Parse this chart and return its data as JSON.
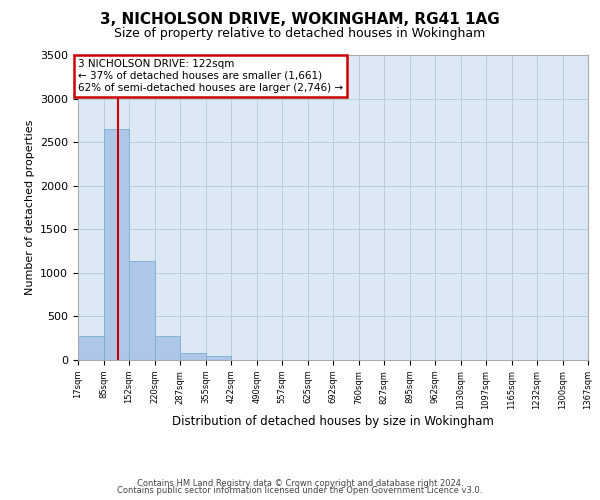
{
  "title": "3, NICHOLSON DRIVE, WOKINGHAM, RG41 1AG",
  "subtitle": "Size of property relative to detached houses in Wokingham",
  "xlabel": "Distribution of detached houses by size in Wokingham",
  "ylabel": "Number of detached properties",
  "bin_edges": [
    17,
    85,
    152,
    220,
    287,
    355,
    422,
    490,
    557,
    625,
    692,
    760,
    827,
    895,
    962,
    1030,
    1097,
    1165,
    1232,
    1300,
    1367
  ],
  "bar_heights": [
    270,
    2650,
    1140,
    280,
    85,
    45,
    0,
    0,
    0,
    0,
    0,
    0,
    0,
    0,
    0,
    0,
    0,
    0,
    0,
    0
  ],
  "bar_color": "#aec6e8",
  "bar_edge_color": "#7aaed0",
  "vline_x": 122,
  "vline_color": "#cc0000",
  "annotation_title": "3 NICHOLSON DRIVE: 122sqm",
  "annotation_line1": "← 37% of detached houses are smaller (1,661)",
  "annotation_line2": "62% of semi-detached houses are larger (2,746) →",
  "annotation_box_color": "#cc0000",
  "ylim": [
    0,
    3500
  ],
  "yticks": [
    0,
    500,
    1000,
    1500,
    2000,
    2500,
    3000,
    3500
  ],
  "tick_labels": [
    "17sqm",
    "85sqm",
    "152sqm",
    "220sqm",
    "287sqm",
    "355sqm",
    "422sqm",
    "490sqm",
    "557sqm",
    "625sqm",
    "692sqm",
    "760sqm",
    "827sqm",
    "895sqm",
    "962sqm",
    "1030sqm",
    "1097sqm",
    "1165sqm",
    "1232sqm",
    "1300sqm",
    "1367sqm"
  ],
  "footer_line1": "Contains HM Land Registry data © Crown copyright and database right 2024.",
  "footer_line2": "Contains public sector information licensed under the Open Government Licence v3.0.",
  "background_color": "#ffffff",
  "plot_bg_color": "#dce9f5",
  "grid_color": "#b8cfe0"
}
